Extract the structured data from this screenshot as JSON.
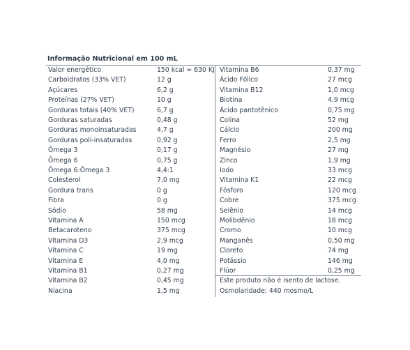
{
  "title": "Informação Nutricional em 100 mL",
  "left_rows": [
    [
      "Valor energético",
      "150 kcal = 630 KJ"
    ],
    [
      "Carboidratos (33% VET)",
      "12 g"
    ],
    [
      "Açúcares",
      "6,2 g"
    ],
    [
      "Proteínas (27% VET)",
      "10 g"
    ],
    [
      "Gorduras totais (40% VET)",
      "6,7 g"
    ],
    [
      "Gorduras saturadas",
      "0,48 g"
    ],
    [
      "Gorduras monoinsaturadas",
      "4,7 g"
    ],
    [
      "Gorduras poli-insaturadas",
      "0,92 g"
    ],
    [
      "Ômega 3",
      "0,17 g"
    ],
    [
      "Ômega 6",
      "0,75 g"
    ],
    [
      "Ômega 6:Ômega 3",
      "4,4:1"
    ],
    [
      "Colesterol",
      "7,0 mg"
    ],
    [
      "Gordura trans",
      "0 g"
    ],
    [
      "Fibra",
      "0 g"
    ],
    [
      "Sódio",
      "58 mg"
    ],
    [
      "Vitamina A",
      "150 mcg"
    ],
    [
      "Betacaroteno",
      "375 mcg"
    ],
    [
      "Vitamina D3",
      "2,9 mcg"
    ],
    [
      "Vitamina C",
      "19 mg"
    ],
    [
      "Vitamina E",
      "4,0 mg"
    ],
    [
      "Vitamina B1",
      "0,27 mg"
    ],
    [
      "Vitamina B2",
      "0,45 mg"
    ],
    [
      "Niacina",
      "1,5 mg"
    ]
  ],
  "right_rows": [
    [
      "Vitamina B6",
      "0,37 mg"
    ],
    [
      "Ácido Fólico",
      "27 mcg"
    ],
    [
      "Vitamina B12",
      "1,0 mcg"
    ],
    [
      "Biotina",
      "4,9 mcg"
    ],
    [
      "Ácido pantotênico",
      "0,75 mg"
    ],
    [
      "Colina",
      "52 mg"
    ],
    [
      "Cálcio",
      "200 mg"
    ],
    [
      "Ferro",
      "2,5 mg"
    ],
    [
      "Magnésio",
      "27 mg"
    ],
    [
      "Zinco",
      "1,9 mg"
    ],
    [
      "Iodo",
      "33 mcg"
    ],
    [
      "Vitamina K1",
      "22 mcg"
    ],
    [
      "Fósforo",
      "120 mcg"
    ],
    [
      "Cobre",
      "375 mcg"
    ],
    [
      "Selênio",
      "14 mcg"
    ],
    [
      "Molibdênio",
      "18 mcg"
    ],
    [
      "Cromo",
      "10 mcg"
    ],
    [
      "Manganês",
      "0,50 mg"
    ],
    [
      "Cloreto",
      "74 mg"
    ],
    [
      "Potássio",
      "146 mg"
    ],
    [
      "Flúor",
      "0,25 mg"
    ]
  ],
  "notes": [
    "Este produto não é isento de lactose.",
    "Osmolaridade: 440 mosmo/L"
  ]
}
